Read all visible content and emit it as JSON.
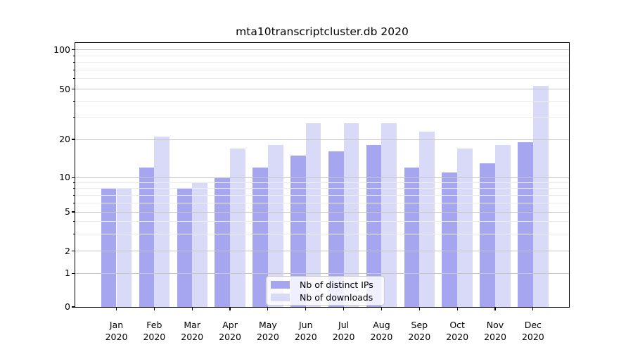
{
  "chart_data": {
    "type": "bar",
    "title": "mta10transcriptcluster.db 2020",
    "categories": [
      "Jan 2020",
      "Feb 2020",
      "Mar 2020",
      "Apr 2020",
      "May 2020",
      "Jun 2020",
      "Jul 2020",
      "Aug 2020",
      "Sep 2020",
      "Oct 2020",
      "Nov 2020",
      "Dec 2020"
    ],
    "month_labels": [
      "Jan",
      "Feb",
      "Mar",
      "Apr",
      "May",
      "Jun",
      "Jul",
      "Aug",
      "Sep",
      "Oct",
      "Nov",
      "Dec"
    ],
    "year_label": "2020",
    "series": [
      {
        "name": "Nb of distinct IPs",
        "color": "#a6a6f0",
        "values": [
          8,
          12,
          8,
          10,
          12,
          15,
          16,
          18,
          12,
          11,
          13,
          19
        ]
      },
      {
        "name": "Nb of downloads",
        "color": "#d9d9f8",
        "values": [
          8,
          21,
          9,
          17,
          18,
          27,
          27,
          27,
          23,
          17,
          18,
          53
        ]
      }
    ],
    "xlabel": "",
    "ylabel": "",
    "y_ticks": [
      0,
      1,
      2,
      5,
      10,
      20,
      50,
      100
    ],
    "y_minor_ticks": [
      3,
      4,
      6,
      7,
      8,
      9,
      30,
      40,
      60,
      70,
      80,
      90
    ],
    "ylim": [
      0,
      100
    ],
    "y_axis_scale": "log-like with zero baseline (ticks 0,1,2,5,10,20,50,100)",
    "grid": "horizontal major and minor gridlines drawn over bars",
    "legend_position": "lower center"
  },
  "legend": {
    "entries": [
      "Nb of distinct IPs",
      "Nb of downloads"
    ]
  },
  "colors": {
    "background": "#ffffff",
    "bar_distinct_ips": "#a6a6f0",
    "bar_downloads": "#d9d9f8",
    "grid_major": "#c6c6c6",
    "grid_minor": "#ececec",
    "axis": "#000000",
    "legend_border": "#cccccc",
    "text": "#000000"
  }
}
